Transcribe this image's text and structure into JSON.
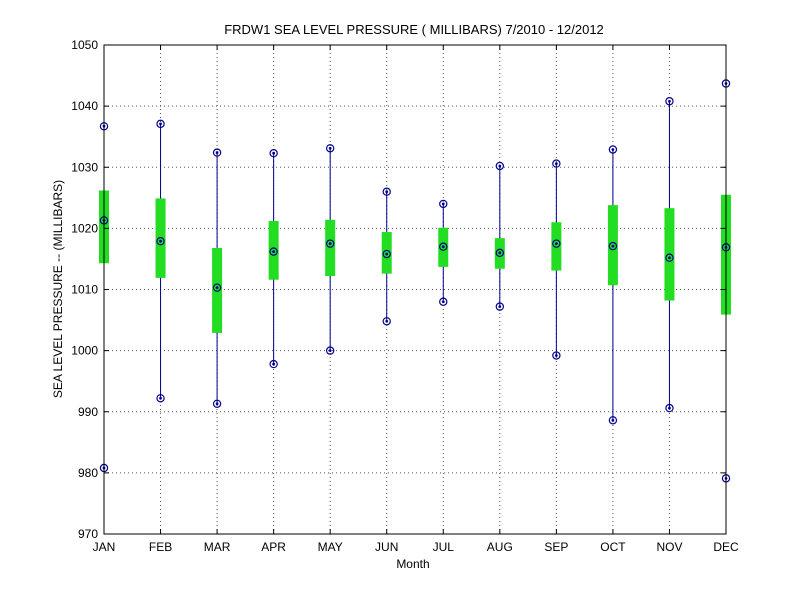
{
  "chart_data": {
    "type": "box",
    "title": "FRDW1  SEA LEVEL PRESSURE ( MILLIBARS) 7/2010 - 12/2012",
    "xlabel": "Month",
    "ylabel": "SEA LEVEL PRESSURE -- (MILLIBARS)",
    "ylim": [
      970,
      1050
    ],
    "yticks": [
      970,
      980,
      990,
      1000,
      1010,
      1020,
      1030,
      1040,
      1050
    ],
    "grid": true,
    "categories": [
      "JAN",
      "FEB",
      "MAR",
      "APR",
      "MAY",
      "JUN",
      "JUL",
      "AUG",
      "SEP",
      "OCT",
      "NOV",
      "DEC"
    ],
    "min": [
      980.8,
      992.2,
      991.3,
      997.8,
      1000.0,
      1004.8,
      1008.0,
      1007.2,
      999.2,
      988.6,
      990.6,
      979.1
    ],
    "q1": [
      1014.3,
      1011.9,
      1002.9,
      1011.6,
      1012.2,
      1012.6,
      1013.7,
      1013.4,
      1013.1,
      1010.7,
      1008.2,
      1005.9
    ],
    "median": [
      1021.3,
      1017.9,
      1010.3,
      1016.2,
      1017.5,
      1015.8,
      1017.0,
      1016.0,
      1017.5,
      1017.1,
      1015.2,
      1016.9
    ],
    "q3": [
      1026.2,
      1024.9,
      1016.8,
      1021.2,
      1021.4,
      1019.4,
      1020.1,
      1018.4,
      1021.0,
      1023.8,
      1023.3,
      1025.5
    ],
    "max": [
      1036.7,
      1037.1,
      1032.4,
      1032.3,
      1033.1,
      1026.0,
      1024.0,
      1030.2,
      1030.6,
      1032.9,
      1040.8,
      1043.7
    ],
    "colors": {
      "box": "#22dd22",
      "whisker": "#00008b",
      "marker": "#00008b",
      "grid": "#555555"
    }
  }
}
